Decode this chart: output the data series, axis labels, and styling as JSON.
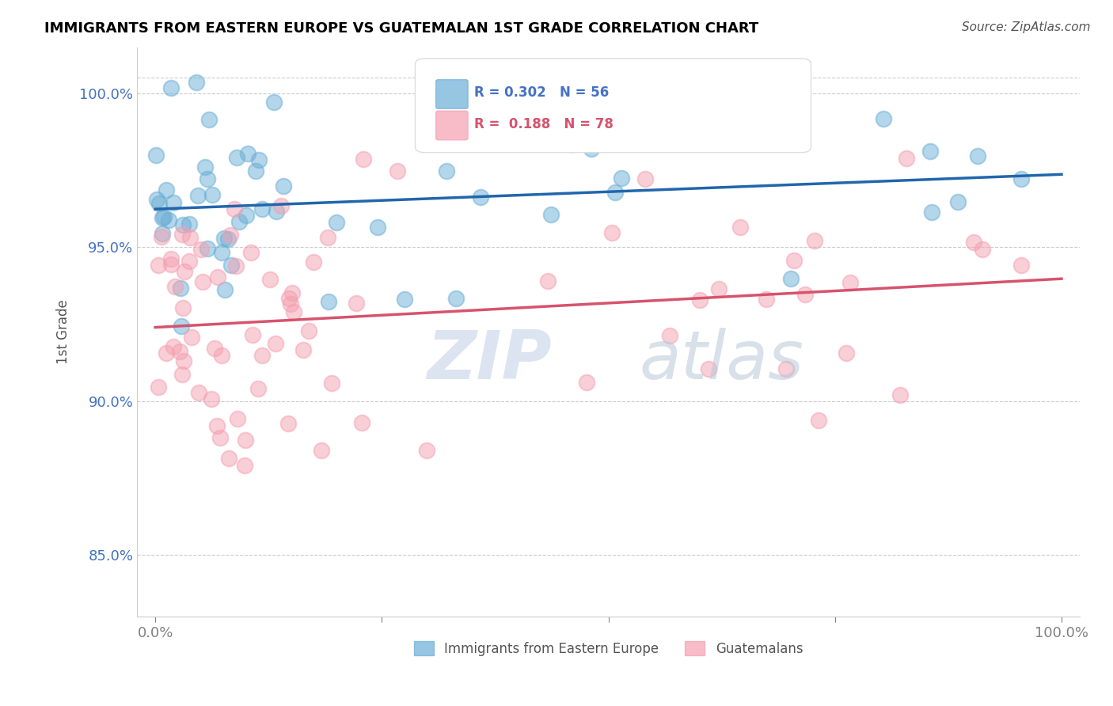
{
  "title": "IMMIGRANTS FROM EASTERN EUROPE VS GUATEMALAN 1ST GRADE CORRELATION CHART",
  "source": "Source: ZipAtlas.com",
  "ylabel": "1st Grade",
  "xlim": [
    -2.0,
    102.0
  ],
  "ylim": [
    83.0,
    101.5
  ],
  "yticks": [
    85.0,
    90.0,
    95.0,
    100.0
  ],
  "blue_R": 0.302,
  "blue_N": 56,
  "pink_R": 0.188,
  "pink_N": 78,
  "blue_color": "#6baed6",
  "pink_color": "#f4a0b0",
  "blue_line_color": "#2166ac",
  "pink_line_color": "#d6536d",
  "legend_label_blue": "Immigrants from Eastern Europe",
  "legend_label_pink": "Guatemalans",
  "watermark_zip": "ZIP",
  "watermark_atlas": "atlas"
}
